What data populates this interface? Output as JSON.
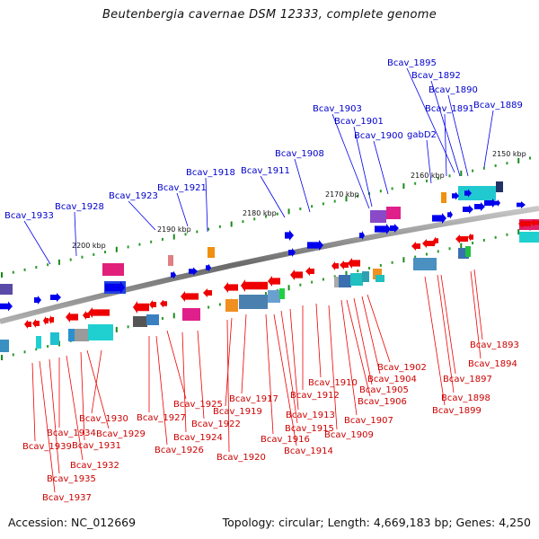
{
  "title": "Beutenbergia cavernae DSM 12333, complete genome",
  "footer": {
    "accession": "Accession: NC_012669",
    "topology": "Topology: circular; Length: 4,669,183 bp; Genes: 4,250"
  },
  "colors": {
    "forward_gene": "#0000ee",
    "reverse_gene": "#ee0000",
    "label_forward": "#0000cc",
    "label_reverse": "#cc0000",
    "backbone": "#8a8a8a"
  },
  "ticks": [
    "2150 kbp",
    "2160 kbp",
    "2170 kbp",
    "2180 kbp",
    "2190 kbp",
    "2200 kbp"
  ],
  "forward_labels": [
    "Bcav_1895",
    "Bcav_1892",
    "Bcav_1890",
    "Bcav_1891",
    "Bcav_1889",
    "Bcav_1903",
    "Bcav_1901",
    "Bcav_1900",
    "gabD2",
    "Bcav_1908",
    "Bcav_1918",
    "Bcav_1911",
    "Bcav_1921",
    "Bcav_1923",
    "Bcav_1928",
    "Bcav_1933"
  ],
  "reverse_labels": [
    "Bcav_1893",
    "Bcav_1894",
    "Bcav_1897",
    "Bcav_1898",
    "Bcav_1899",
    "Bcav_1902",
    "Bcav_1904",
    "Bcav_1905",
    "Bcav_1906",
    "Bcav_1907",
    "Bcav_1909",
    "Bcav_1910",
    "Bcav_1912",
    "Bcav_1913",
    "Bcav_1915",
    "Bcav_1914",
    "Bcav_1916",
    "Bcav_1917",
    "Bcav_1919",
    "Bcav_1920",
    "Bcav_1922",
    "Bcav_1924",
    "Bcav_1925",
    "Bcav_1926",
    "Bcav_1927",
    "Bcav_1929",
    "Bcav_1930",
    "Bcav_1931",
    "Bcav_1932",
    "Bcav_1934",
    "Bcav_1935",
    "Bcav_1937",
    "Bcav_1939"
  ]
}
